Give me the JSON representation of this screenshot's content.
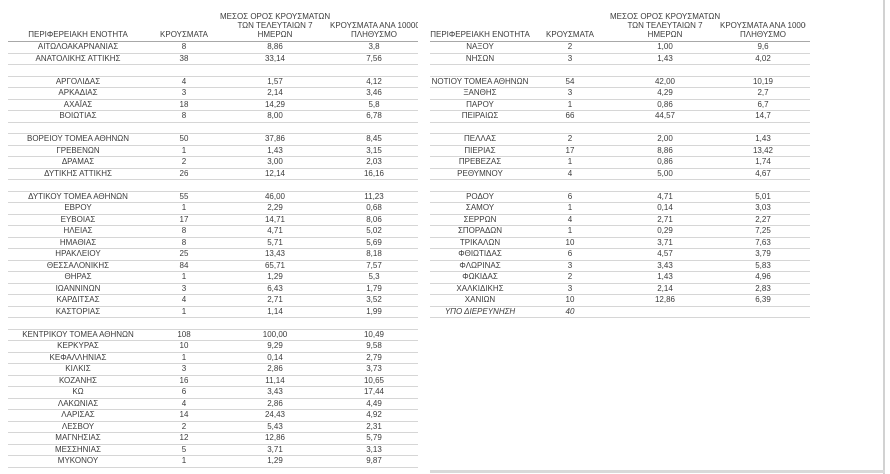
{
  "page": {
    "background": "#ffffff",
    "text_color": "#3c3c3c",
    "row_border_color": "#d6d6d6",
    "header_border_color": "#a8a8a8"
  },
  "headers": {
    "region": "ΠΕΡΙΦΕΡΕΙΑΚΗ ΕΝΟΤΗΤΑ",
    "cases": "ΚΡΟΥΣΜΑΤΑ",
    "avg7_lines": [
      "ΜΕΣΟΣ ΟΡΟΣ ΚΡΟΥΣΜΑΤΩΝ",
      "ΤΩΝ ΤΕΛΕΥΤΑΙΩΝ 7",
      "ΗΜΕΡΩΝ"
    ],
    "per100k_lines": [
      "ΚΡΟΥΣΜΑΤΑ ΑΝΑ 100000",
      "ΠΛΗΘΥΣΜΟ"
    ]
  },
  "chart_data": {
    "type": "table",
    "columns": [
      "ΠΕΡΙΦΕΡΕΙΑΚΗ ΕΝΟΤΗΤΑ",
      "ΚΡΟΥΣΜΑΤΑ",
      "ΜΕΣΟΣ ΟΡΟΣ ΚΡΟΥΣΜΑΤΩΝ ΤΩΝ ΤΕΛΕΥΤΑΙΩΝ 7 ΗΜΕΡΩΝ",
      "ΚΡΟΥΣΜΑΤΑ ΑΝΑ 100000 ΠΛΗΘΥΣΜΟ"
    ],
    "left_table": {
      "rows": [
        [
          "ΑΙΤΩΛΟΑΚΑΡΝΑΝΙΑΣ",
          "8",
          "8,86",
          "3,8"
        ],
        [
          "ΑΝΑΤΟΛΙΚΗΣ ΑΤΤΙΚΗΣ",
          "38",
          "33,14",
          "7,56"
        ],
        null,
        [
          "ΑΡΓΟΛΙΔΑΣ",
          "4",
          "1,57",
          "4,12"
        ],
        [
          "ΑΡΚΑΔΙΑΣ",
          "3",
          "2,14",
          "3,46"
        ],
        [
          "ΑΧΑΪΑΣ",
          "18",
          "14,29",
          "5,8"
        ],
        [
          "ΒΟΙΩΤΙΑΣ",
          "8",
          "8,00",
          "6,78"
        ],
        null,
        [
          "ΒΟΡΕΙΟΥ ΤΟΜΕΑ ΑΘΗΝΩΝ",
          "50",
          "37,86",
          "8,45"
        ],
        [
          "ΓΡΕΒΕΝΩΝ",
          "1",
          "1,43",
          "3,15"
        ],
        [
          "ΔΡΑΜΑΣ",
          "2",
          "3,00",
          "2,03"
        ],
        [
          "ΔΥΤΙΚΗΣ ΑΤΤΙΚΗΣ",
          "26",
          "12,14",
          "16,16"
        ],
        null,
        [
          "ΔΥΤΙΚΟΥ ΤΟΜΕΑ ΑΘΗΝΩΝ",
          "55",
          "46,00",
          "11,23"
        ],
        [
          "ΕΒΡΟΥ",
          "1",
          "2,29",
          "0,68"
        ],
        [
          "ΕΥΒΟΙΑΣ",
          "17",
          "14,71",
          "8,06"
        ],
        [
          "ΗΛΕΙΑΣ",
          "8",
          "4,71",
          "5,02"
        ],
        [
          "ΗΜΑΘΙΑΣ",
          "8",
          "5,71",
          "5,69"
        ],
        [
          "ΗΡΑΚΛΕΙΟΥ",
          "25",
          "13,43",
          "8,18"
        ],
        [
          "ΘΕΣΣΑΛΟΝΙΚΗΣ",
          "84",
          "65,71",
          "7,57"
        ],
        [
          "ΘΗΡΑΣ",
          "1",
          "1,29",
          "5,3"
        ],
        [
          "ΙΩΑΝΝΙΝΩΝ",
          "3",
          "6,43",
          "1,79"
        ],
        [
          "ΚΑΡΔΙΤΣΑΣ",
          "4",
          "2,71",
          "3,52"
        ],
        [
          "ΚΑΣΤΟΡΙΑΣ",
          "1",
          "1,14",
          "1,99"
        ],
        null,
        [
          "ΚΕΝΤΡΙΚΟΥ ΤΟΜΕΑ ΑΘΗΝΩΝ",
          "108",
          "100,00",
          "10,49"
        ],
        [
          "ΚΕΡΚΥΡΑΣ",
          "10",
          "9,29",
          "9,58"
        ],
        [
          "ΚΕΦΑΛΛΗΝΙΑΣ",
          "1",
          "0,14",
          "2,79"
        ],
        [
          "ΚΙΛΚΙΣ",
          "3",
          "2,86",
          "3,73"
        ],
        [
          "ΚΟΖΑΝΗΣ",
          "16",
          "11,14",
          "10,65"
        ],
        [
          "ΚΩ",
          "6",
          "3,43",
          "17,44"
        ],
        [
          "ΛΑΚΩΝΙΑΣ",
          "4",
          "2,86",
          "4,49"
        ],
        [
          "ΛΑΡΙΣΑΣ",
          "14",
          "24,43",
          "4,92"
        ],
        [
          "ΛΕΣΒΟΥ",
          "2",
          "5,43",
          "2,31"
        ],
        [
          "ΜΑΓΝΗΣΙΑΣ",
          "12",
          "12,86",
          "5,79"
        ],
        [
          "ΜΕΣΣΗΝΙΑΣ",
          "5",
          "3,71",
          "3,13"
        ],
        [
          "ΜΥΚΟΝΟΥ",
          "1",
          "1,29",
          "9,87"
        ]
      ]
    },
    "right_table": {
      "rows": [
        [
          "ΝΑΞΟΥ",
          "2",
          "1,00",
          "9,6"
        ],
        [
          "ΝΗΣΩΝ",
          "3",
          "1,43",
          "4,02"
        ],
        null,
        [
          "ΝΟΤΙΟΥ ΤΟΜΕΑ ΑΘΗΝΩΝ",
          "54",
          "42,00",
          "10,19"
        ],
        [
          "ΞΑΝΘΗΣ",
          "3",
          "4,29",
          "2,7"
        ],
        [
          "ΠΑΡΟΥ",
          "1",
          "0,86",
          "6,7"
        ],
        [
          "ΠΕΙΡΑΙΩΣ",
          "66",
          "44,57",
          "14,7"
        ],
        null,
        [
          "ΠΕΛΛΑΣ",
          "2",
          "2,00",
          "1,43"
        ],
        [
          "ΠΙΕΡΙΑΣ",
          "17",
          "8,86",
          "13,42"
        ],
        [
          "ΠΡΕΒΕΖΑΣ",
          "1",
          "0,86",
          "1,74"
        ],
        [
          "ΡΕΘΥΜΝΟΥ",
          "4",
          "5,00",
          "4,67"
        ],
        null,
        [
          "ΡΟΔΟΥ",
          "6",
          "4,71",
          "5,01"
        ],
        [
          "ΣΑΜΟΥ",
          "1",
          "0,14",
          "3,03"
        ],
        [
          "ΣΕΡΡΩΝ",
          "4",
          "2,71",
          "2,27"
        ],
        [
          "ΣΠΟΡΑΔΩΝ",
          "1",
          "0,29",
          "7,25"
        ],
        [
          "ΤΡΙΚΑΛΩΝ",
          "10",
          "3,71",
          "7,63"
        ],
        [
          "ΦΘΙΩΤΙΔΑΣ",
          "6",
          "4,57",
          "3,79"
        ],
        [
          "ΦΛΩΡΙΝΑΣ",
          "3",
          "3,43",
          "5,83"
        ],
        [
          "ΦΩΚΙΔΑΣ",
          "2",
          "1,43",
          "4,96"
        ],
        [
          "ΧΑΛΚΙΔΙΚΗΣ",
          "3",
          "2,14",
          "2,83"
        ],
        [
          "ΧΑΝΙΩΝ",
          "10",
          "12,86",
          "6,39"
        ],
        [
          "ΥΠΟ ΔΙΕΡΕΥΝΗΣΗ",
          "40",
          "",
          "",
          "italic"
        ]
      ]
    }
  }
}
